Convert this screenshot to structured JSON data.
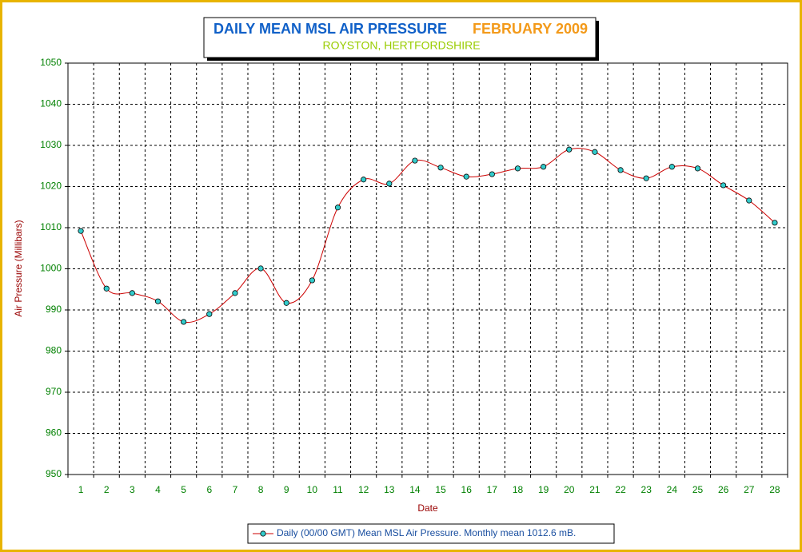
{
  "chart_data": {
    "type": "line",
    "title": "DAILY MEAN MSL AIR PRESSURE",
    "title_period": "FEBRUARY 2009",
    "subtitle": "ROYSTON, HERTFORDSHIRE",
    "x_label": "Date",
    "y_label": "Air Pressure (Millibars)",
    "categories": [
      "1",
      "2",
      "3",
      "4",
      "5",
      "6",
      "7",
      "8",
      "9",
      "10",
      "11",
      "12",
      "13",
      "14",
      "15",
      "16",
      "17",
      "18",
      "19",
      "20",
      "21",
      "22",
      "23",
      "24",
      "25",
      "26",
      "27",
      "28"
    ],
    "series": [
      {
        "name": "Daily (00/00 GMT) Mean MSL Air Pressure. Monthly mean 1012.6 mB.",
        "color": "#cc0000",
        "marker_color": "#33cccc",
        "values": [
          1009.2,
          995.2,
          994.1,
          992.1,
          987.1,
          989.0,
          994.1,
          1000.1,
          991.7,
          997.2,
          1014.9,
          1021.7,
          1020.7,
          1026.3,
          1024.6,
          1022.4,
          1023.0,
          1024.4,
          1024.8,
          1029.0,
          1028.4,
          1024.0,
          1022.0,
          1024.8,
          1024.4,
          1020.3,
          1016.6,
          1011.2
        ]
      }
    ],
    "ylim": [
      950,
      1050
    ],
    "yticks": [
      950,
      960,
      970,
      980,
      990,
      1000,
      1010,
      1020,
      1030,
      1040,
      1050
    ],
    "grid": true,
    "legend": "bottom"
  }
}
